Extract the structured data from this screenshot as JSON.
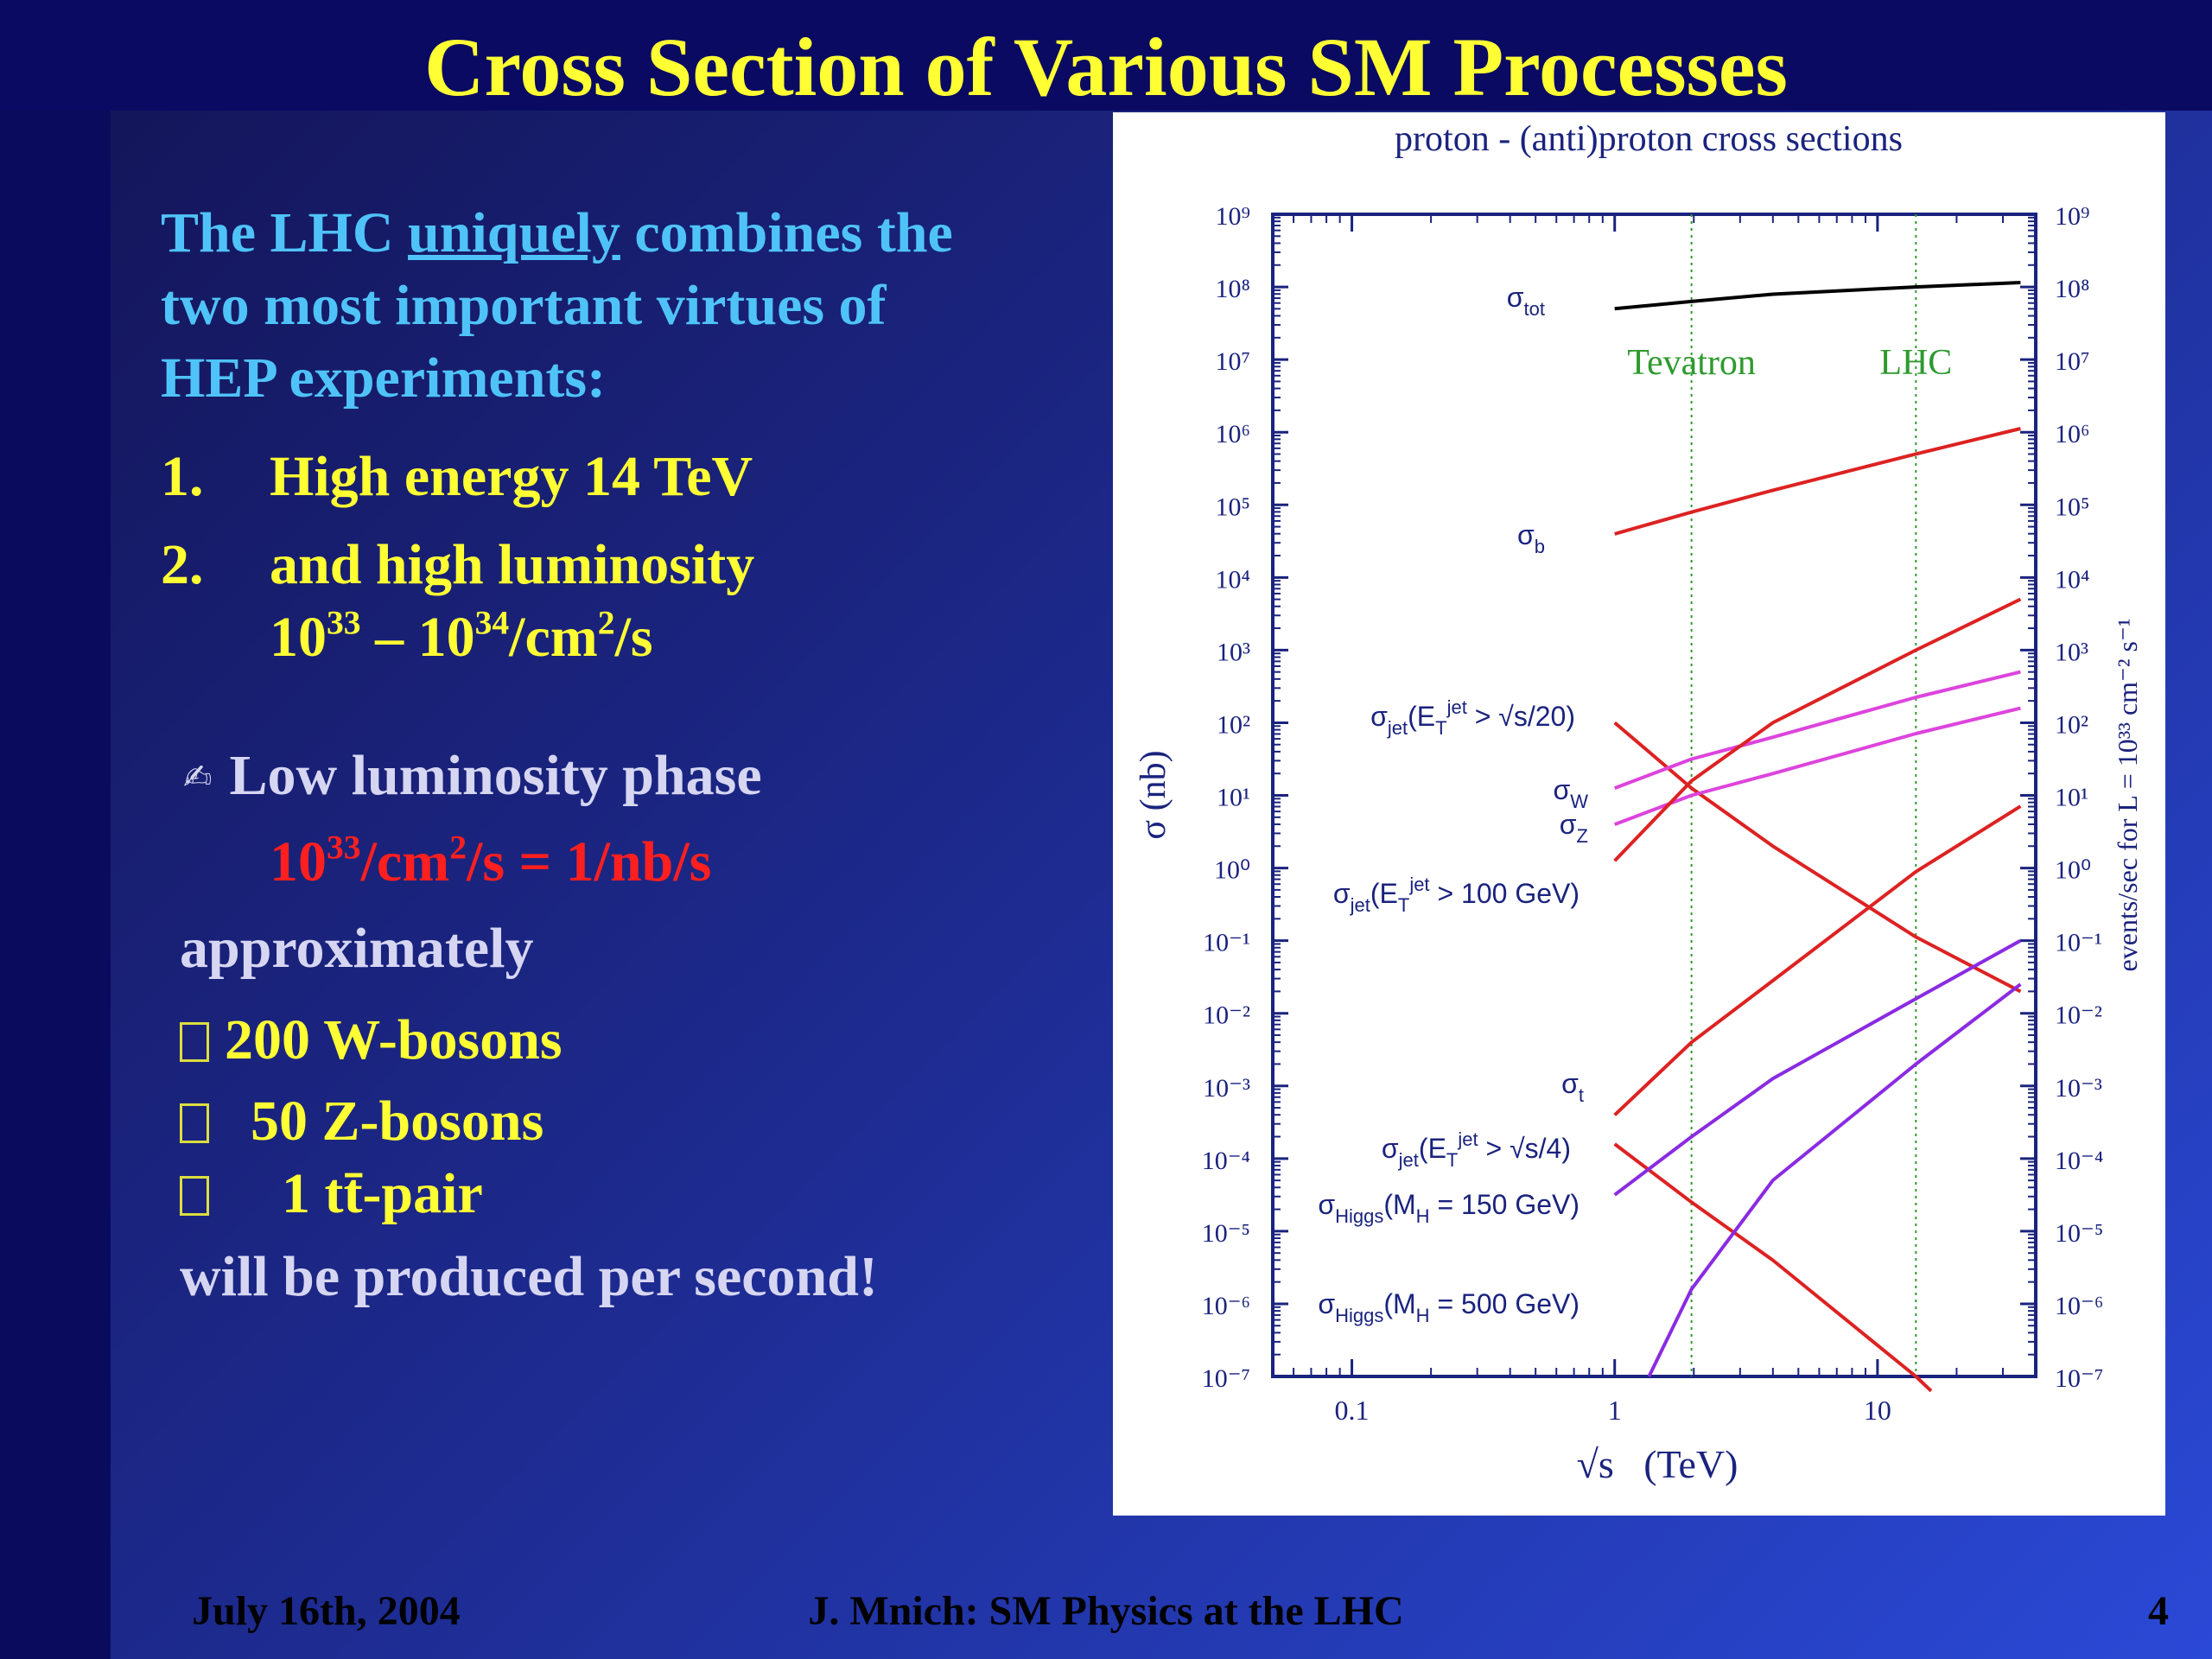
{
  "slide": {
    "title": "Cross Section of Various SM Processes",
    "footer": {
      "date": "July 16th, 2004",
      "center": "J. Mnich: SM Physics at the LHC",
      "page": "4"
    }
  },
  "left_text": {
    "intro_prefix": "The LHC ",
    "intro_emph": "uniquely",
    "intro_suffix": " combines the",
    "intro_line2": "two most important virtues of",
    "intro_line3": "HEP experiments:",
    "item1_num": "1.",
    "item1_text": "High energy 14 TeV",
    "item2_num": "2.",
    "item2_text": "and high luminosity",
    "item2_lum": {
      "a": "10",
      "a_exp": "33",
      "mid": " – 10",
      "b_exp": "34",
      "unit1": "/cm",
      "unit1_exp": "2",
      "unit2": "/s"
    },
    "phase_glyph": "✍",
    "phase_label": "Low luminosity phase",
    "phase_value": {
      "a": "10",
      "a_exp": "33",
      "unit1": "/cm",
      "unit1_exp": "2",
      "rest": "/s = 1/nb/s"
    },
    "approx": "approximately",
    "rate1": "200 W-bosons",
    "rate2": "50 Z-bosons",
    "rate3": "1 tt̄-pair",
    "closing": "will be produced per second!"
  },
  "chart_data": {
    "type": "line",
    "title": "proton - (anti)proton cross sections",
    "xlabel": "√s   (TeV)",
    "ylabel": "σ  (nb)",
    "y2label": "events/sec  for  L = 10³³ cm⁻² s⁻¹",
    "xscale": "log",
    "yscale": "log",
    "xlim": [
      0.05,
      40
    ],
    "ylim_exp": [
      -7,
      9
    ],
    "xticks": [
      {
        "v": 0.1,
        "label": "0.1"
      },
      {
        "v": 1,
        "label": "1"
      },
      {
        "v": 10,
        "label": "10"
      }
    ],
    "y_tick_exps": [
      9,
      8,
      7,
      6,
      5,
      4,
      3,
      2,
      1,
      0,
      -1,
      -2,
      -3,
      -4,
      -5,
      -6,
      -7
    ],
    "vlines": [
      {
        "x": 1.96,
        "label": "Tevatron",
        "color": "#2e9a2e"
      },
      {
        "x": 14,
        "label": "LHC",
        "color": "#2e9a2e"
      }
    ],
    "series": [
      {
        "id": "tot",
        "label": "σ_tot",
        "color": "#000000",
        "points": [
          [
            1,
            7.7
          ],
          [
            1.96,
            7.8
          ],
          [
            4,
            7.9
          ],
          [
            14,
            8.0
          ],
          [
            35,
            8.06
          ]
        ]
      },
      {
        "id": "b",
        "label": "σ_b",
        "color": "#dd2222",
        "points": [
          [
            1,
            4.6
          ],
          [
            1.96,
            4.9
          ],
          [
            4,
            5.2
          ],
          [
            14,
            5.7
          ],
          [
            35,
            6.05
          ]
        ]
      },
      {
        "id": "jet20",
        "label": "σ_jet(E_T^jet > √s/20)",
        "color": "#dd2222",
        "points": [
          [
            1,
            2.0
          ],
          [
            1.96,
            1.1
          ],
          [
            4,
            0.3
          ],
          [
            14,
            -0.95
          ],
          [
            35,
            -1.7
          ]
        ]
      },
      {
        "id": "W",
        "label": "σ_W",
        "color": "#dd44dd",
        "points": [
          [
            1,
            1.1
          ],
          [
            1.96,
            1.5
          ],
          [
            4,
            1.8
          ],
          [
            14,
            2.35
          ],
          [
            35,
            2.7
          ]
        ]
      },
      {
        "id": "Z",
        "label": "σ_Z",
        "color": "#dd44dd",
        "points": [
          [
            1,
            0.6
          ],
          [
            1.96,
            1.0
          ],
          [
            4,
            1.3
          ],
          [
            14,
            1.85
          ],
          [
            35,
            2.2
          ]
        ]
      },
      {
        "id": "jet100",
        "label": "σ_jet(E_T^jet > 100 GeV)",
        "color": "#dd2222",
        "points": [
          [
            1,
            0.1
          ],
          [
            1.96,
            1.2
          ],
          [
            4,
            2.0
          ],
          [
            14,
            3.0
          ],
          [
            35,
            3.7
          ]
        ]
      },
      {
        "id": "t",
        "label": "σ_t",
        "color": "#dd2222",
        "points": [
          [
            1,
            -3.4
          ],
          [
            1.96,
            -2.4
          ],
          [
            4,
            -1.55
          ],
          [
            14,
            -0.05
          ],
          [
            35,
            0.85
          ]
        ]
      },
      {
        "id": "jet4",
        "label": "σ_jet(E_T^jet > √s/4)",
        "color": "#dd2222",
        "points": [
          [
            1,
            -3.8
          ],
          [
            1.96,
            -4.6
          ],
          [
            4,
            -5.4
          ],
          [
            14,
            -7.0
          ],
          [
            16,
            -7.2
          ]
        ]
      },
      {
        "id": "h150",
        "label": "σ_Higgs(M_H = 150 GeV)",
        "color": "#8a2be2",
        "points": [
          [
            1,
            -4.5
          ],
          [
            1.96,
            -3.7
          ],
          [
            4,
            -2.9
          ],
          [
            14,
            -1.8
          ],
          [
            35,
            -1.0
          ]
        ]
      },
      {
        "id": "h500",
        "label": "σ_Higgs(M_H = 500 GeV)",
        "color": "#8a2be2",
        "points": [
          [
            1.35,
            -7.0
          ],
          [
            1.96,
            -5.8
          ],
          [
            4,
            -4.3
          ],
          [
            14,
            -2.7
          ],
          [
            35,
            -1.6
          ]
        ]
      }
    ]
  }
}
